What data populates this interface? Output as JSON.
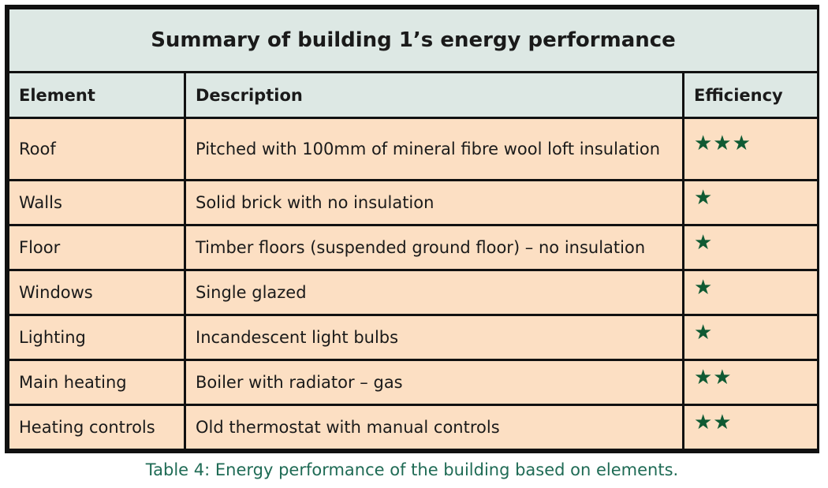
{
  "table": {
    "title": "Summary of building 1’s energy performance",
    "headers": {
      "element": "Element",
      "description": "Description",
      "efficiency": "Efficiency"
    },
    "rows": [
      {
        "element": "Roof",
        "description": "Pitched with 100mm of mineral fibre wool loft insulation",
        "efficiency": "★★★",
        "rating": 3
      },
      {
        "element": "Walls",
        "description": "Solid brick with no insulation",
        "efficiency": "★",
        "rating": 1
      },
      {
        "element": "Floor",
        "description": "Timber floors (suspended ground floor) – no insulation",
        "efficiency": "★",
        "rating": 1
      },
      {
        "element": "Windows",
        "description": "Single glazed",
        "efficiency": "★",
        "rating": 1
      },
      {
        "element": "Lighting",
        "description": "Incandescent light bulbs",
        "efficiency": "★",
        "rating": 1
      },
      {
        "element": "Main heating",
        "description": "Boiler with radiator – gas",
        "efficiency": "★★",
        "rating": 2
      },
      {
        "element": "Heating controls",
        "description": "Old thermostat with manual controls",
        "efficiency": "★★",
        "rating": 2
      }
    ]
  },
  "caption": "Table 4: Energy performance of the building based on elements.",
  "colors": {
    "header_bg": "#dde8e4",
    "body_bg": "#fcdfc3",
    "star": "#0f5a33",
    "caption": "#1f6b55",
    "border": "#111111"
  }
}
